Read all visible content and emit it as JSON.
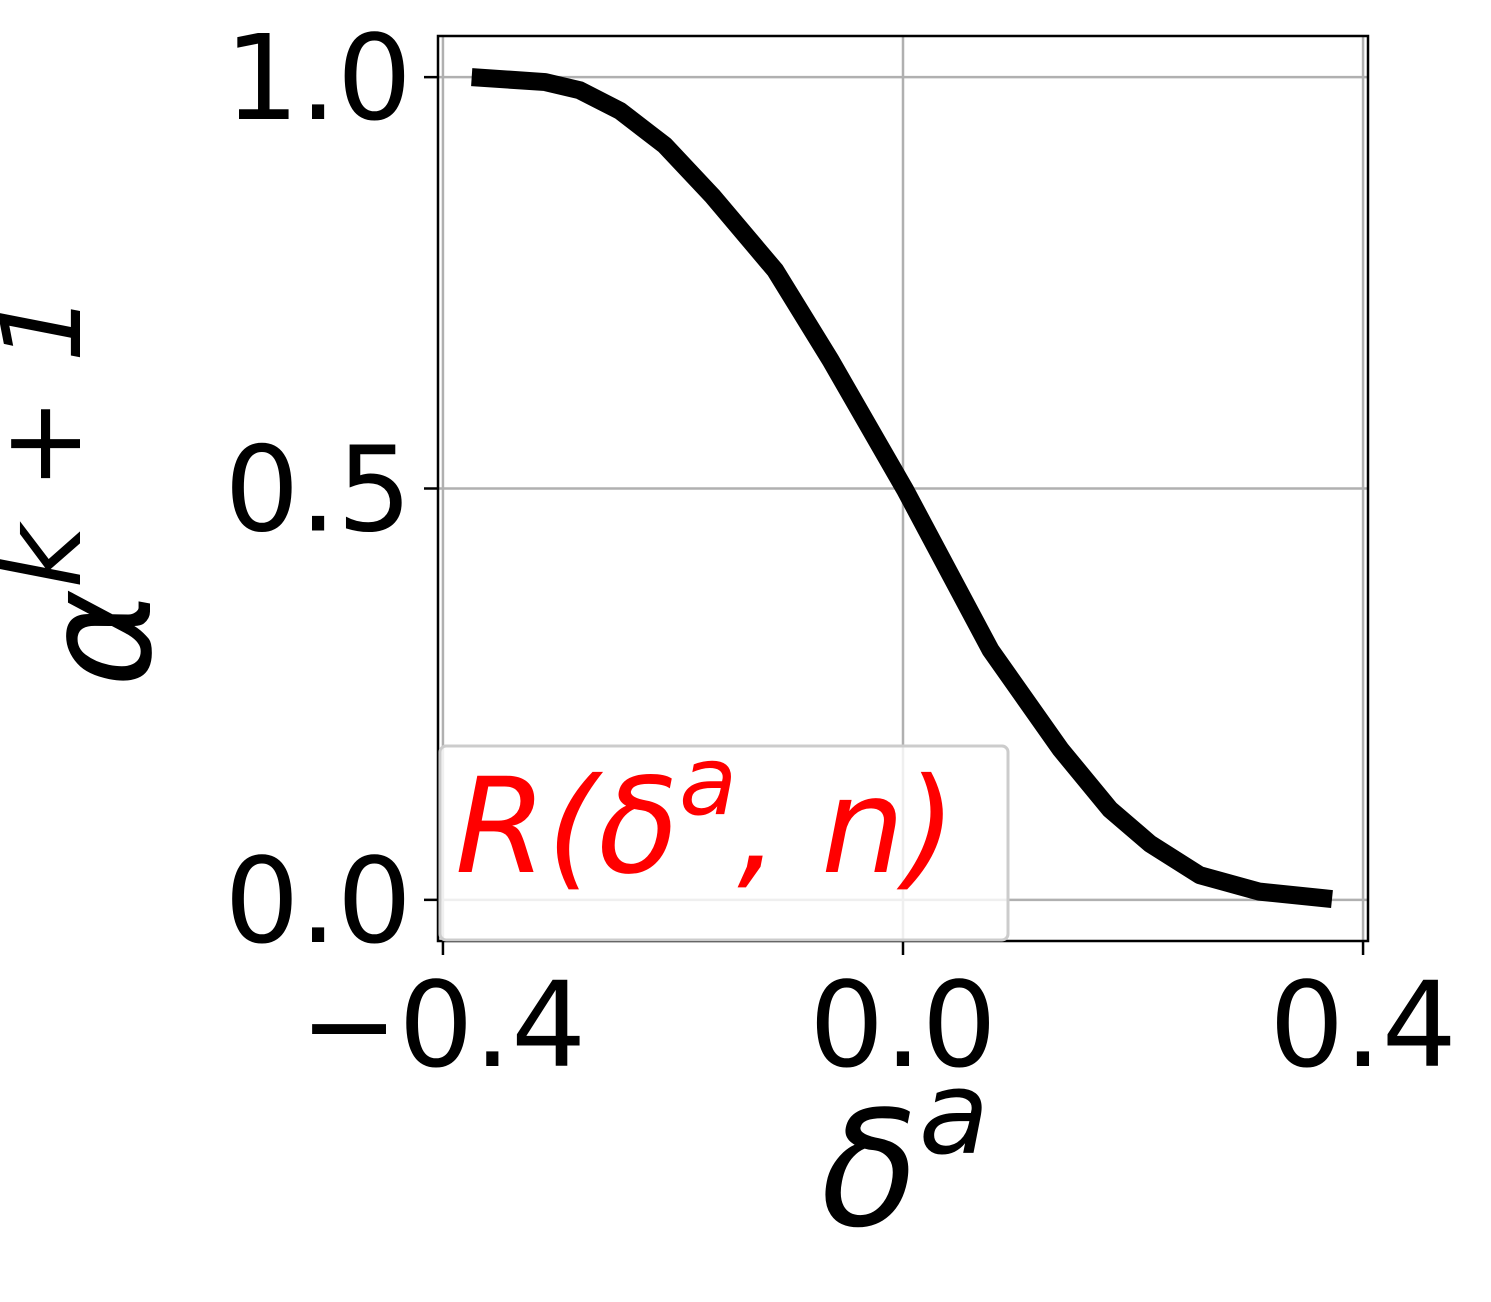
{
  "chart_data": {
    "type": "line",
    "xlabel": {
      "base": "δ",
      "sup": "a"
    },
    "ylabel": {
      "base": "α",
      "sup": "k + 1"
    },
    "annotation": {
      "head": "R(δ",
      "sup": "a",
      "tail": ", n)",
      "color": "#ff0000"
    },
    "x": [
      -0.375,
      -0.311,
      -0.281,
      -0.246,
      -0.207,
      -0.166,
      -0.111,
      -0.063,
      0.002,
      0.076,
      0.137,
      0.18,
      0.215,
      0.258,
      0.31,
      0.373
    ],
    "series": [
      {
        "color": "#000000",
        "values": [
          1.0,
          0.994,
          0.984,
          0.959,
          0.917,
          0.856,
          0.765,
          0.656,
          0.498,
          0.304,
          0.183,
          0.11,
          0.068,
          0.03,
          0.01,
          0.001
        ]
      }
    ],
    "xlim": [
      -0.4043,
      0.4043
    ],
    "ylim": [
      -0.05,
      1.05
    ],
    "xticks": [
      {
        "value": -0.4,
        "label": "−0.4"
      },
      {
        "value": 0,
        "label": "0.0"
      },
      0.4
    ],
    "yticks": [
      {
        "value": 0,
        "label": "0.0"
      },
      0.5,
      {
        "value": 1,
        "label": "1.0"
      }
    ],
    "grid": true
  }
}
